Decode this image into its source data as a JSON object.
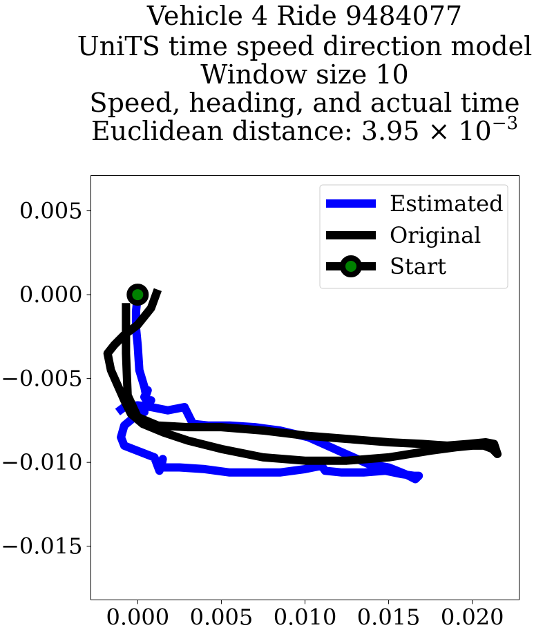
{
  "chart_data": {
    "type": "line",
    "title_lines": [
      "Vehicle 4 Ride 9484077",
      "UniTS time speed direction model",
      "Window size 10",
      "Speed, heading, and actual time",
      "Euclidean distance: 3.95×10⁻³"
    ],
    "title_math": {
      "mantissa": "3.95",
      "times": "×",
      "base": "10",
      "exponent": "−3"
    },
    "xlim": [
      -0.0028,
      0.0228
    ],
    "ylim": [
      -0.0182,
      0.0071
    ],
    "x_ticks": [
      0.0,
      0.005,
      0.01,
      0.015,
      0.02
    ],
    "x_tick_labels": [
      "0.000",
      "0.005",
      "0.010",
      "0.015",
      "0.020"
    ],
    "y_ticks": [
      0.005,
      0.0,
      -0.005,
      -0.01,
      -0.015
    ],
    "y_tick_labels": [
      "0.005",
      "0.000",
      "−0.005",
      "−0.010",
      "−0.015"
    ],
    "grid": false,
    "legend_position": "upper right",
    "legend": [
      {
        "label": "Estimated",
        "color": "#0000ff"
      },
      {
        "label": "Original",
        "color": "#000000"
      },
      {
        "label": "Start",
        "color": "#000000",
        "marker_color": "#008000"
      }
    ],
    "series": [
      {
        "name": "Estimated",
        "color": "#0000ff",
        "x": [
          0.0,
          -0.0001,
          -0.0001,
          0.0,
          0.0001,
          0.0004,
          0.0005,
          0.0006,
          0.0004,
          0.0006,
          0.0008,
          0.0006,
          0.0002,
          0.0004,
          -0.0002,
          -0.0008,
          -0.001,
          -0.0008,
          -0.0003,
          0.001,
          0.0013,
          0.0015,
          0.0014,
          0.0017,
          0.0025,
          0.004,
          0.0055,
          0.007,
          0.0085,
          0.01,
          0.011,
          0.0112,
          0.0122,
          0.0135,
          0.0148,
          0.0158,
          0.0165,
          0.0168,
          0.0166,
          0.016,
          0.0155,
          0.015,
          0.0138,
          0.012,
          0.0102,
          0.0085,
          0.007,
          0.0055,
          0.0042,
          0.0033,
          0.0028,
          0.0018,
          0.0008,
          0.0,
          -0.0008,
          -0.0012
        ],
        "y": [
          0.0,
          -0.001,
          -0.002,
          -0.003,
          -0.0045,
          -0.0055,
          -0.006,
          -0.0057,
          -0.0061,
          -0.0064,
          -0.0063,
          -0.0066,
          -0.0068,
          -0.007,
          -0.0073,
          -0.0078,
          -0.0085,
          -0.009,
          -0.0092,
          -0.0097,
          -0.0105,
          -0.0098,
          -0.0103,
          -0.0103,
          -0.0103,
          -0.0104,
          -0.0106,
          -0.0106,
          -0.0106,
          -0.0104,
          -0.0102,
          -0.0105,
          -0.0106,
          -0.0106,
          -0.0105,
          -0.0107,
          -0.0108,
          -0.0108,
          -0.011,
          -0.0107,
          -0.0105,
          -0.0103,
          -0.0101,
          -0.0093,
          -0.0085,
          -0.0081,
          -0.0079,
          -0.0078,
          -0.0078,
          -0.0077,
          -0.0067,
          -0.0069,
          -0.0067,
          -0.0066,
          -0.0067,
          -0.007
        ]
      },
      {
        "name": "Original",
        "color": "#000000",
        "x": [
          0.0012,
          0.0008,
          0.0,
          -0.0008,
          -0.0014,
          -0.0018,
          -0.0016,
          -0.0012,
          -0.0008,
          -0.0004,
          0.0003,
          0.0015,
          0.003,
          0.005,
          0.0075,
          0.01,
          0.0125,
          0.015,
          0.0175,
          0.019,
          0.02,
          0.0207,
          0.0212,
          0.0215,
          0.0213,
          0.0208,
          0.0198,
          0.0185,
          0.017,
          0.015,
          0.0125,
          0.01,
          0.0075,
          0.005,
          0.003,
          0.0012,
          0.0,
          -0.0006,
          -0.0007,
          -0.0007,
          -0.0007
        ],
        "y": [
          0.0003,
          -0.0008,
          -0.0018,
          -0.0024,
          -0.003,
          -0.0035,
          -0.0045,
          -0.0054,
          -0.0063,
          -0.0071,
          -0.0077,
          -0.0082,
          -0.0087,
          -0.0092,
          -0.0097,
          -0.0099,
          -0.0099,
          -0.0097,
          -0.0093,
          -0.0091,
          -0.009,
          -0.009,
          -0.0092,
          -0.0095,
          -0.0089,
          -0.0088,
          -0.0089,
          -0.009,
          -0.0089,
          -0.0088,
          -0.0086,
          -0.0084,
          -0.0081,
          -0.0079,
          -0.0079,
          -0.0078,
          -0.0073,
          -0.006,
          -0.0035,
          -0.0015,
          -0.0005
        ]
      }
    ],
    "start_point": {
      "x": 0.0,
      "y": 0.0,
      "edge_color": "#000000",
      "face_color": "#008000"
    }
  }
}
